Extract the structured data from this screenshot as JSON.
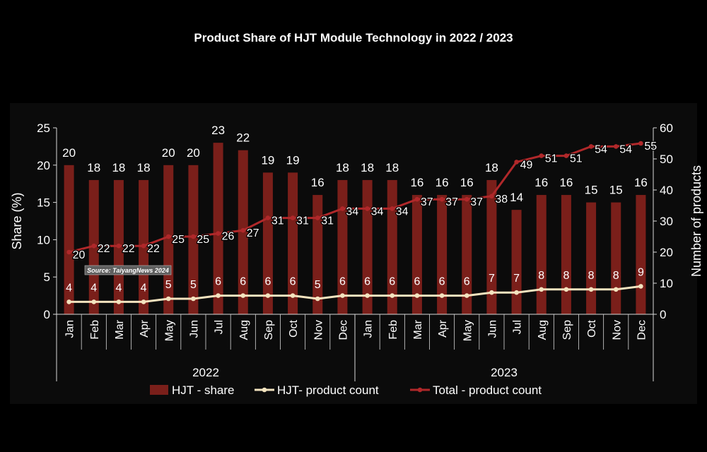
{
  "chart_data": {
    "type": "bar",
    "title": "Product Share of HJT Module Technology in 2022 / 2023",
    "ylabel": "Share (%)",
    "y2label": "Number of products",
    "ylim": [
      0,
      25
    ],
    "y2lim": [
      0,
      60
    ],
    "yticks": [
      "0",
      "5",
      "10",
      "15",
      "20",
      "25"
    ],
    "y2ticks": [
      "0",
      "10",
      "20",
      "30",
      "40",
      "50",
      "60"
    ],
    "categories": [
      "Jan",
      "Feb",
      "Mar",
      "Apr",
      "May",
      "Jun",
      "Jul",
      "Aug",
      "Sep",
      "Oct",
      "Nov",
      "Dec",
      "Jan",
      "Feb",
      "Mar",
      "Apr",
      "May",
      "Jun",
      "Jul",
      "Aug",
      "Sep",
      "Oct",
      "Nov",
      "Dec"
    ],
    "groups": [
      {
        "label": "2022",
        "start": 0,
        "end": 11
      },
      {
        "label": "2023",
        "start": 12,
        "end": 23
      }
    ],
    "series": [
      {
        "name": "HJT - share",
        "kind": "bar",
        "axis": "left",
        "color": "#7a1f1a",
        "values": [
          20,
          18,
          18,
          18,
          20,
          20,
          23,
          22,
          19,
          19,
          16,
          18,
          18,
          18,
          16,
          16,
          16,
          18,
          14,
          16,
          16,
          15,
          15,
          16
        ]
      },
      {
        "name": "HJT- product count",
        "kind": "line",
        "axis": "right",
        "color": "#f3e3bf",
        "values": [
          4,
          4,
          4,
          4,
          5,
          5,
          6,
          6,
          6,
          6,
          5,
          6,
          6,
          6,
          6,
          6,
          6,
          7,
          7,
          8,
          8,
          8,
          8,
          9
        ]
      },
      {
        "name": "Total - product count",
        "kind": "line",
        "axis": "right",
        "color": "#b0282a",
        "values": [
          20,
          22,
          22,
          22,
          25,
          25,
          26,
          27,
          31,
          31,
          31,
          34,
          34,
          34,
          37,
          37,
          37,
          38,
          49,
          51,
          51,
          54,
          54,
          55
        ]
      }
    ],
    "source_note": "Source: TaiyangNews 2024",
    "legend_position": "bottom"
  },
  "colors": {
    "background": "#000000",
    "panel": "#0b0b0b",
    "bar": "#7a1f1a",
    "hjt_line": "#f3e3bf",
    "total_line": "#b0282a",
    "text": "#ffffff"
  }
}
